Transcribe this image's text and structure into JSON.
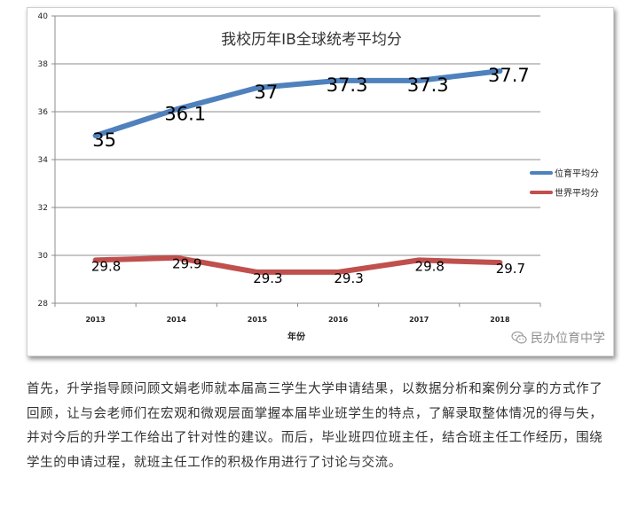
{
  "chart_data": {
    "type": "line",
    "title": "我校历年IB全球统考平均分",
    "xlabel": "年份",
    "ylabel": "",
    "categories": [
      "2013",
      "2014",
      "2015",
      "2016",
      "2017",
      "2018"
    ],
    "ylim": [
      28,
      40
    ],
    "yticks": [
      "28",
      "30",
      "32",
      "34",
      "36",
      "38",
      "40"
    ],
    "grid": true,
    "legend_position": "right",
    "series": [
      {
        "name": "位育平均分",
        "color": "#4f81bd",
        "values": [
          35,
          36.1,
          37,
          37.3,
          37.3,
          37.7
        ],
        "labels": [
          "35",
          "36.1",
          "37",
          "37.3",
          "37.3",
          "37.7"
        ]
      },
      {
        "name": "世界平均分",
        "color": "#c0504d",
        "values": [
          29.8,
          29.9,
          29.3,
          29.3,
          29.8,
          29.7
        ],
        "labels": [
          "29.8",
          "29.9",
          "29.3",
          "29.3",
          "29.8",
          "29.7"
        ]
      }
    ]
  },
  "watermark": {
    "text": "民办位育中学",
    "icon": "wechat-icon"
  },
  "article": {
    "paragraph": "首先，升学指导顾问顾文娟老师就本届高三学生大学申请结果，以数据分析和案例分享的方式作了回顾，让与会老师们在宏观和微观层面掌握本届毕业班学生的特点，了解录取整体情况的得与失，并对今后的升学工作给出了针对性的建议。而后，毕业班四位班主任，结合班主任工作经历，围绕学生的申请过程，就班主任工作的积极作用进行了讨论与交流。"
  }
}
